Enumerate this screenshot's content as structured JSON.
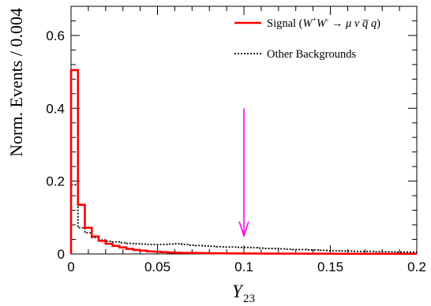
{
  "chart_data": {
    "type": "histogram",
    "xlabel": "Y",
    "xlabel_sub": "23",
    "ylabel": "Norm. Events / 0.004",
    "xlim": [
      0,
      0.2
    ],
    "ylim": [
      0,
      0.68
    ],
    "x_ticks": [
      0,
      0.05,
      0.1,
      0.15,
      0.2
    ],
    "x_tick_labels": [
      "0",
      "0.05",
      "0.1",
      "0.15",
      "0.2"
    ],
    "y_ticks": [
      0,
      0.2,
      0.4,
      0.6
    ],
    "y_tick_labels": [
      "0",
      "0.2",
      "0.4",
      "0.6"
    ],
    "bin_width": 0.004,
    "bin_edges_start": 0,
    "grid": false,
    "legend_position": "top-right",
    "series": [
      {
        "name": "Signal (W⁺W⁻ → μν q̅ q)",
        "color": "#ff0000",
        "style": "solid",
        "values": [
          0.505,
          0.135,
          0.072,
          0.048,
          0.036,
          0.028,
          0.022,
          0.018,
          0.014,
          0.011,
          0.009,
          0.007,
          0.006,
          0.005,
          0.004,
          0.0035,
          0.003,
          0.0028,
          0.0025,
          0.0022,
          0.002,
          0.0018,
          0.0016,
          0.0015,
          0.0014,
          0.0013,
          0.0012,
          0.0011,
          0.001,
          0.001,
          0.0009,
          0.0009,
          0.0008,
          0.0008,
          0.0007,
          0.0007,
          0.0006,
          0.0006,
          0.0005,
          0.0005,
          0.0005,
          0.0005,
          0.0004,
          0.0004,
          0.0004,
          0.0004,
          0.0003,
          0.0003,
          0.0003,
          0.0003
        ]
      },
      {
        "name": "Other Backgrounds",
        "color": "#000000",
        "style": "dotted",
        "values": [
          0.19,
          0.072,
          0.058,
          0.045,
          0.038,
          0.035,
          0.033,
          0.031,
          0.029,
          0.028,
          0.027,
          0.026,
          0.026,
          0.026,
          0.027,
          0.028,
          0.026,
          0.024,
          0.023,
          0.022,
          0.021,
          0.02,
          0.019,
          0.019,
          0.018,
          0.018,
          0.017,
          0.016,
          0.015,
          0.015,
          0.014,
          0.013,
          0.012,
          0.012,
          0.011,
          0.011,
          0.01,
          0.009,
          0.009,
          0.008,
          0.008,
          0.007,
          0.007,
          0.007,
          0.006,
          0.006,
          0.006,
          0.005,
          0.005,
          0.005
        ]
      }
    ],
    "annotations": [
      {
        "type": "arrow",
        "x": 0.1,
        "y_start": 0.4,
        "y_end": 0.05,
        "color": "#ff00ff"
      }
    ]
  }
}
